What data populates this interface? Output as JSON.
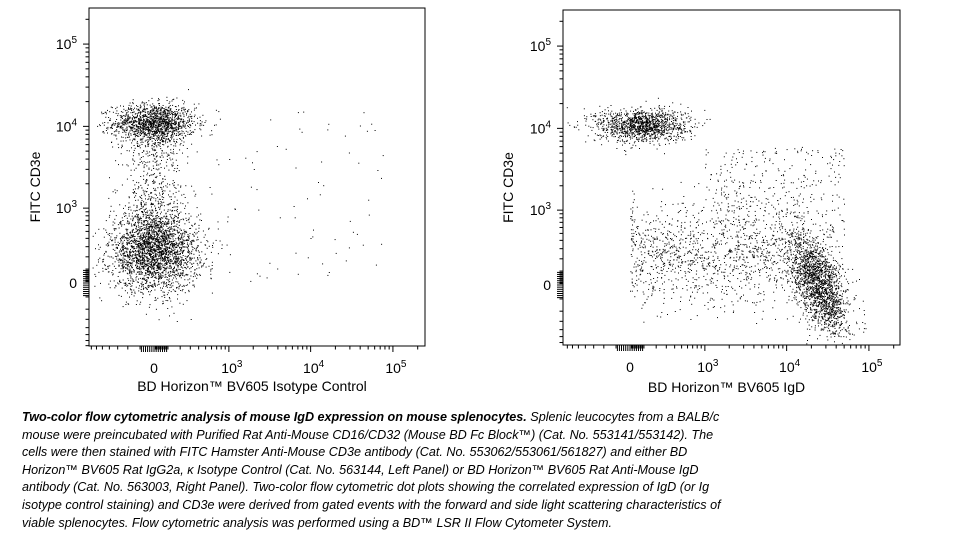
{
  "chart_data": [
    {
      "type": "scatter",
      "panel": "left",
      "xlabel": "BD Horizon™ BV605 Isotype Control",
      "ylabel": "FITC CD3e",
      "scale": "biexponential",
      "x_ticks": [
        {
          "value": 0,
          "label": "0"
        },
        {
          "value": 1000,
          "base": "10",
          "exp": "3"
        },
        {
          "value": 10000,
          "base": "10",
          "exp": "4"
        },
        {
          "value": 100000,
          "base": "10",
          "exp": "5"
        }
      ],
      "y_ticks": [
        {
          "value": 0,
          "label": "0"
        },
        {
          "value": 1000,
          "base": "10",
          "exp": "3"
        },
        {
          "value": 10000,
          "base": "10",
          "exp": "4"
        },
        {
          "value": 100000,
          "base": "10",
          "exp": "5"
        }
      ],
      "xlim": [
        -2000,
        250000
      ],
      "ylim": [
        -2000,
        250000
      ],
      "grid": false,
      "point_color": "#000000",
      "populations": [
        {
          "x_center": 0,
          "y_center": 11000,
          "x_sd_decades": 0.25,
          "y_sd_decades": 0.12,
          "events": 1500
        },
        {
          "x_center": 0,
          "y_center": 250,
          "x_sd_decades": 0.27,
          "y_sd_decades": 0.24,
          "events": 2600
        },
        {
          "x_center": 0,
          "y_range": [
            400,
            7000
          ],
          "x_sd_decades": 0.2,
          "events": 500
        },
        {
          "x_range": [
            500,
            100000
          ],
          "y_range": [
            0,
            20000
          ],
          "events": 80
        }
      ]
    },
    {
      "type": "scatter",
      "panel": "right",
      "xlabel": "BD Horizon™ BV605 IgD",
      "ylabel": "FITC CD3e",
      "scale": "biexponential",
      "x_ticks": [
        {
          "value": 0,
          "label": "0"
        },
        {
          "value": 1000,
          "base": "10",
          "exp": "3"
        },
        {
          "value": 10000,
          "base": "10",
          "exp": "4"
        },
        {
          "value": 100000,
          "base": "10",
          "exp": "5"
        }
      ],
      "y_ticks": [
        {
          "value": 0,
          "label": "0"
        },
        {
          "value": 1000,
          "base": "10",
          "exp": "3"
        },
        {
          "value": 10000,
          "base": "10",
          "exp": "4"
        },
        {
          "value": 100000,
          "base": "10",
          "exp": "5"
        }
      ],
      "xlim": [
        -2000,
        250000
      ],
      "ylim": [
        -2000,
        250000
      ],
      "grid": false,
      "point_color": "#000000",
      "populations": [
        {
          "x_center": 80,
          "y_center": 11000,
          "x_sd_decades": 0.28,
          "y_sd_decades": 0.1,
          "events": 1300
        },
        {
          "x_center": 25000,
          "y_center": 0,
          "x_sd_decades": 0.17,
          "y_sd_decades": 0.26,
          "events": 1900
        },
        {
          "x_range": [
            0,
            15000
          ],
          "y_center": 250,
          "y_sd_decades": 0.32,
          "events": 1200
        },
        {
          "x_range": [
            1000,
            50000
          ],
          "y_range": [
            400,
            6000
          ],
          "events": 350
        }
      ]
    }
  ],
  "caption": {
    "title": "Two-color flow cytometric analysis of mouse IgD expression on mouse splenocytes.",
    "lines": [
      " Splenic leucocytes from a BALB/c",
      "mouse were preincubated with Purified Rat Anti-Mouse CD16/CD32 (Mouse BD Fc Block™) (Cat. No. 553141/553142). The",
      "cells were then stained with FITC Hamster Anti-Mouse CD3e antibody (Cat. No. 553062/553061/561827) and either BD",
      "Horizon™ BV605 Rat IgG2a, κ Isotype Control (Cat. No. 563144, Left Panel) or BD Horizon™ BV605 Rat Anti-Mouse IgD",
      "antibody (Cat. No. 563003, Right Panel).  Two-color flow cytometric dot plots showing the correlated expression of IgD (or Ig",
      "isotype control staining) and CD3e were derived from gated events with the forward and side light scattering characteristics of",
      "viable splenocytes. Flow cytometric analysis was performed using a BD™ LSR II Flow Cytometer System."
    ]
  }
}
